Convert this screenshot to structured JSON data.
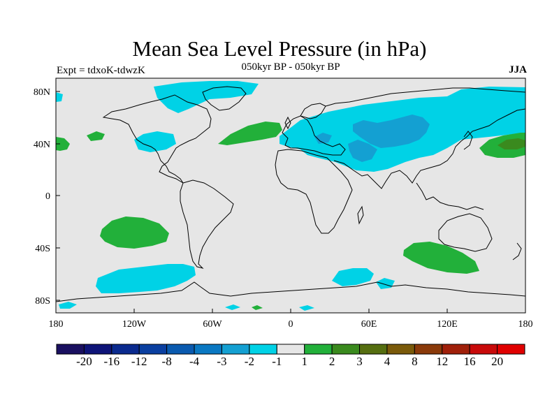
{
  "title": "Mean Sea Level Pressure (in hPa)",
  "subtitle": "050kyr BP - 050kyr BP",
  "experiment": "Expt = tdxoK-tdwzK",
  "season": "JJA",
  "axes": {
    "lon_labels": [
      "180",
      "120W",
      "60W",
      "0",
      "60E",
      "120E",
      "180"
    ],
    "lat_labels": [
      "80N",
      "40N",
      "0",
      "40S",
      "80S"
    ]
  },
  "colorbar": {
    "labels": [
      "-20",
      "-16",
      "-12",
      "-8",
      "-4",
      "-3",
      "-2",
      "-1",
      "1",
      "2",
      "3",
      "4",
      "8",
      "12",
      "16",
      "20"
    ],
    "colors": [
      "#1a1060",
      "#0e1478",
      "#0a2a8e",
      "#0a3fa0",
      "#0a5aaf",
      "#0a78c2",
      "#14a0d2",
      "#00d2e6",
      "#e6e6e6",
      "#22b03a",
      "#3a8a1e",
      "#556e10",
      "#7a5a0a",
      "#8a3a0a",
      "#a0200a",
      "#c80a0a",
      "#e00000"
    ]
  },
  "map_colors": {
    "background": "#e6e6e6",
    "neg_1_2": "#00d2e6",
    "neg_2_3": "#14a0d2",
    "pos_1_2": "#22b03a",
    "pos_2_3": "#3a8a1e",
    "coast": "#000000"
  }
}
